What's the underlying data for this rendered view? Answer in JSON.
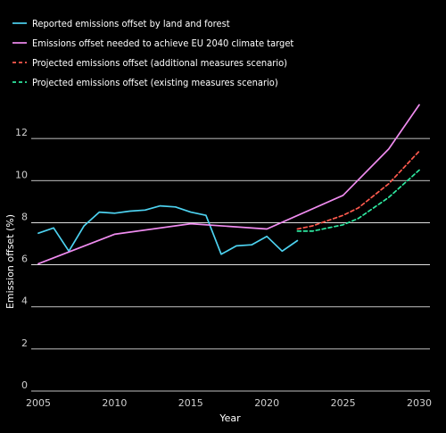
{
  "chart_data": {
    "type": "line",
    "xlabel": "Year",
    "ylabel": "Emission offset (%)",
    "xlim": [
      2005,
      2030
    ],
    "ylim": [
      0,
      14
    ],
    "x_ticks": [
      2005,
      2010,
      2015,
      2020,
      2025,
      2030
    ],
    "y_ticks": [
      0,
      2,
      4,
      6,
      8,
      10,
      12
    ],
    "grid": "horizontal",
    "legend_position": "top-left",
    "background": "#000000",
    "series": [
      {
        "name": "Reported emissions offset by land and forest",
        "color": "#4dd2f0",
        "dash": "solid",
        "points": [
          [
            2005,
            7.5
          ],
          [
            2006,
            7.75
          ],
          [
            2007,
            6.65
          ],
          [
            2008,
            7.85
          ],
          [
            2009,
            8.5
          ],
          [
            2010,
            8.45
          ],
          [
            2011,
            8.55
          ],
          [
            2012,
            8.6
          ],
          [
            2013,
            8.8
          ],
          [
            2014,
            8.75
          ],
          [
            2015,
            8.5
          ],
          [
            2016,
            8.35
          ],
          [
            2017,
            6.5
          ],
          [
            2018,
            6.9
          ],
          [
            2019,
            6.95
          ],
          [
            2020,
            7.35
          ],
          [
            2021,
            6.65
          ],
          [
            2022,
            7.15
          ]
        ]
      },
      {
        "name": "Emissions offset needed to achieve EU 2040 climate target",
        "color": "#f08cf0",
        "dash": "solid",
        "points": [
          [
            2005,
            6.05
          ],
          [
            2010,
            7.45
          ],
          [
            2015,
            7.95
          ],
          [
            2020,
            7.7
          ],
          [
            2025,
            9.3
          ],
          [
            2028,
            11.5
          ],
          [
            2030,
            13.6
          ]
        ]
      },
      {
        "name": "Projected emissions offset (additional measures scenario)",
        "color": "#ff5a4e",
        "dash": "dashed",
        "points": [
          [
            2022,
            7.7
          ],
          [
            2023,
            7.85
          ],
          [
            2025,
            8.35
          ],
          [
            2026,
            8.7
          ],
          [
            2028,
            9.85
          ],
          [
            2030,
            11.4
          ]
        ]
      },
      {
        "name": "Projected emissions offset (existing measures scenario)",
        "color": "#2ee8a0",
        "dash": "dashed",
        "points": [
          [
            2022,
            7.6
          ],
          [
            2023,
            7.6
          ],
          [
            2025,
            7.9
          ],
          [
            2026,
            8.2
          ],
          [
            2028,
            9.2
          ],
          [
            2030,
            10.5
          ]
        ]
      }
    ]
  }
}
